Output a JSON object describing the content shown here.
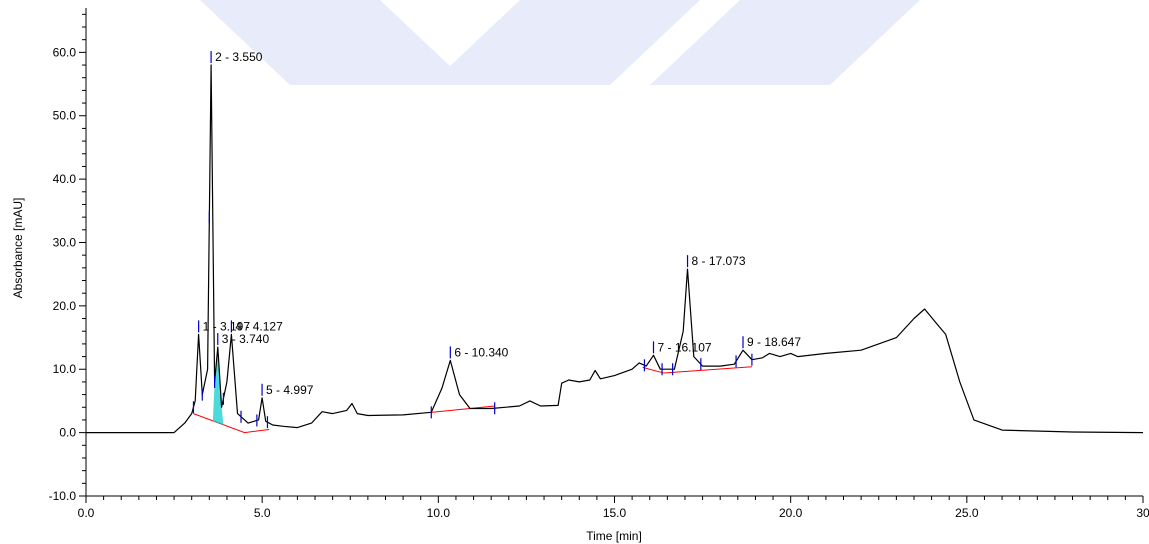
{
  "chart_data": {
    "type": "line",
    "title": "",
    "xlabel": "Time [min]",
    "ylabel": "Absorbance [mAU]",
    "xlim": [
      0,
      30
    ],
    "ylim": [
      -10,
      67
    ],
    "grid": false,
    "legend": "none",
    "colors": {
      "trace": "#000000",
      "baseline": "#ff0000",
      "markers": "#0000cc",
      "fill": "#00cccc",
      "watermark": "#e8ebfa"
    },
    "x_ticks": [
      {
        "value": 0,
        "label": "0.0"
      },
      {
        "value": 5,
        "label": "5.0"
      },
      {
        "value": 10,
        "label": "10.0"
      },
      {
        "value": 15,
        "label": "15.0"
      },
      {
        "value": 20,
        "label": "20.0"
      },
      {
        "value": 25,
        "label": "25.0"
      },
      {
        "value": 30,
        "label": "30"
      }
    ],
    "y_ticks": [
      {
        "value": -10,
        "label": "-10.0"
      },
      {
        "value": 0,
        "label": "0.0"
      },
      {
        "value": 10,
        "label": "10.0"
      },
      {
        "value": 20,
        "label": "20.0"
      },
      {
        "value": 30,
        "label": "30.0"
      },
      {
        "value": 40,
        "label": "40.0"
      },
      {
        "value": 50,
        "label": "50.0"
      },
      {
        "value": 60,
        "label": "60.0"
      }
    ],
    "series": [
      {
        "x": [
          0,
          2.5,
          2.8,
          3.0,
          3.1,
          3.197,
          3.3,
          3.45,
          3.55,
          3.65,
          3.74,
          3.85,
          4.0,
          4.127,
          4.3,
          4.6,
          4.9,
          4.997,
          5.1,
          5.3,
          5.6,
          6.0,
          6.4,
          6.7,
          7.0,
          7.4,
          7.55,
          7.7,
          8.0,
          9.0,
          9.8,
          10.1,
          10.34,
          10.6,
          10.9,
          11.5,
          12.3,
          12.6,
          12.9,
          13.4,
          13.5,
          13.7,
          14.0,
          14.3,
          14.45,
          14.6,
          15.0,
          15.5,
          15.7,
          15.9,
          16.107,
          16.3,
          16.7,
          16.95,
          17.073,
          17.25,
          17.5,
          18.0,
          18.4,
          18.647,
          18.9,
          19.2,
          19.4,
          19.7,
          20.0,
          20.2,
          21.0,
          22.0,
          23.0,
          23.5,
          23.8,
          24.1,
          24.4,
          24.8,
          25.2,
          26.0,
          28.0,
          30.0
        ],
        "y": [
          0,
          0,
          1.5,
          3,
          5,
          15.5,
          6,
          10,
          58,
          8,
          13.5,
          4,
          8,
          15.5,
          3,
          1.5,
          2,
          5.5,
          1.8,
          1.2,
          1,
          0.8,
          1.5,
          3.3,
          3,
          3.5,
          4.6,
          3,
          2.7,
          2.8,
          3.2,
          7,
          11.4,
          6,
          3.8,
          3.8,
          4.2,
          5,
          4.2,
          4.3,
          7.8,
          8.3,
          8,
          8.3,
          9.8,
          8.5,
          9,
          10,
          11,
          10.5,
          12.2,
          10,
          10,
          16,
          25.8,
          12,
          10.5,
          10.5,
          10.8,
          13,
          11.5,
          11.8,
          12.5,
          12,
          12.5,
          12,
          12.5,
          13,
          15,
          18,
          19.5,
          17.5,
          15.5,
          8,
          2,
          0.4,
          0.1,
          0
        ]
      }
    ],
    "baselines": [
      {
        "x": [
          3.05,
          4.5,
          5.2
        ],
        "y": [
          3.0,
          0.0,
          0.5
        ]
      },
      {
        "x": [
          9.8,
          11.6
        ],
        "y": [
          3.2,
          4.2
        ]
      },
      {
        "x": [
          15.8,
          16.4,
          18.9
        ],
        "y": [
          10.3,
          9.4,
          10.4
        ]
      }
    ],
    "peaks": [
      {
        "label": "1 - 3.197",
        "x": 3.197,
        "y": 15.5
      },
      {
        "label": "2 - 3.550",
        "x": 3.55,
        "y": 58
      },
      {
        "label": "3 - 3.740",
        "x": 3.74,
        "y": 13.5
      },
      {
        "label": "4 - 4.127",
        "x": 4.127,
        "y": 15.5
      },
      {
        "label": "5 - 4.997",
        "x": 4.997,
        "y": 5.5
      },
      {
        "label": "6 - 10.340",
        "x": 10.34,
        "y": 11.4
      },
      {
        "label": "7 - 16.107",
        "x": 16.107,
        "y": 12.2
      },
      {
        "label": "8 - 17.073",
        "x": 17.073,
        "y": 25.8
      },
      {
        "label": "9 - 18.647",
        "x": 18.647,
        "y": 13
      }
    ],
    "integration_markers": [
      3.05,
      3.3,
      3.5,
      3.65,
      3.9,
      4.4,
      4.85,
      5.15,
      9.8,
      11.6,
      15.85,
      16.35,
      16.65,
      17.45,
      18.45,
      18.9
    ]
  }
}
